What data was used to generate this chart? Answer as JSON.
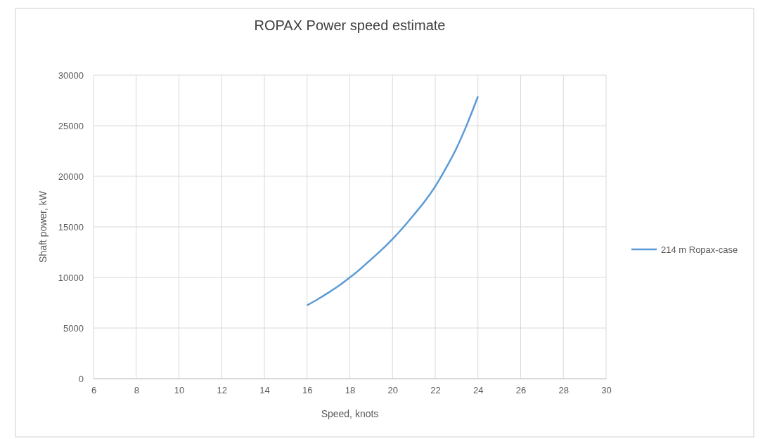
{
  "chart_data": {
    "type": "line",
    "title": "ROPAX Power speed estimate",
    "xlabel": "Speed, knots",
    "ylabel": "Shaft power, kW",
    "x": [
      16,
      16.5,
      17,
      17.5,
      18,
      18.5,
      19,
      19.5,
      20,
      20.5,
      21,
      21.5,
      22,
      22.5,
      23,
      23.5,
      24
    ],
    "series": [
      {
        "name": "214 m Ropax-case",
        "color": "#5b9bd5",
        "values": [
          7250,
          7850,
          8500,
          9200,
          10000,
          10850,
          11800,
          12750,
          13800,
          14950,
          16200,
          17500,
          19000,
          20800,
          22800,
          25200,
          27900
        ]
      }
    ],
    "xlim": [
      6,
      30
    ],
    "xticks": [
      6,
      8,
      10,
      12,
      14,
      16,
      18,
      20,
      22,
      24,
      26,
      28,
      30
    ],
    "ylim": [
      0,
      30000
    ],
    "yticks": [
      0,
      5000,
      10000,
      15000,
      20000,
      25000,
      30000
    ],
    "grid": true,
    "legend": "right",
    "marker": "none",
    "line_style": "solid"
  }
}
